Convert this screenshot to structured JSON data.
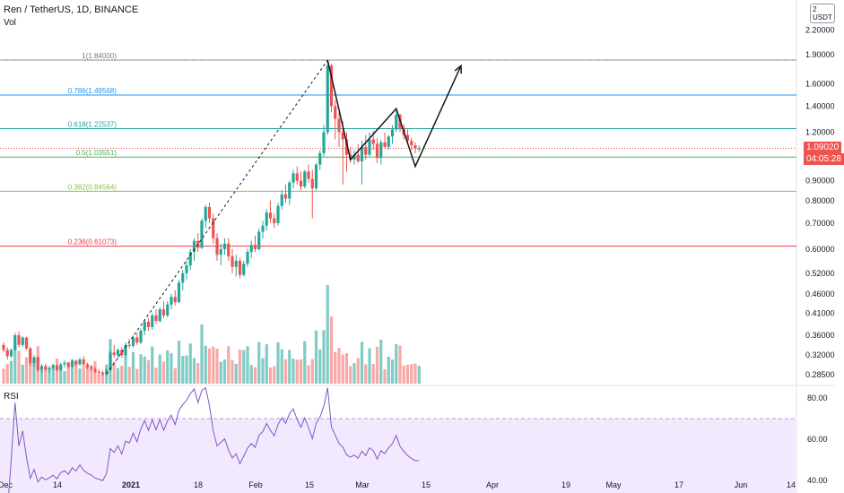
{
  "header": {
    "symbol": "Ren / TetherUS, 1D, BINANCE",
    "indicator": "Vol"
  },
  "rsi_label": "RSI",
  "usdt_button": [
    "2",
    "USDT"
  ],
  "current_price": {
    "value": "1.09020",
    "countdown": "04:05:28",
    "color": "#ef5350"
  },
  "colors": {
    "up": "#26a69a",
    "down": "#ef5350",
    "vol_up": "#80cbc4",
    "vol_down": "#f7a9a7",
    "rsi_line": "#7e57c2",
    "rsi_band": "#f3e9ff"
  },
  "chart_data": {
    "type": "candlestick",
    "price_axis": {
      "ticks": [
        "2.20000",
        "1.90000",
        "1.60000",
        "1.40000",
        "1.20000",
        "0.90000",
        "0.80000",
        "0.70000",
        "0.60000",
        "0.52000",
        "0.46000",
        "0.41000",
        "0.36000",
        "0.32000",
        "0.28500"
      ],
      "scale": "log"
    },
    "rsi_axis": {
      "ticks": [
        "80.00",
        "60.00",
        "40.00"
      ]
    },
    "time_axis": {
      "ticks": [
        "Dec",
        "14",
        "2021",
        "18",
        "Feb",
        "15",
        "Mar",
        "15",
        "Apr",
        "19",
        "May",
        "17",
        "Jun",
        "14"
      ]
    },
    "fib_levels": [
      {
        "label": "1(1.84000)",
        "value": 1.84,
        "color": "#787b86"
      },
      {
        "label": "0.786(1.49568)",
        "value": 1.49568,
        "color": "#2196f3"
      },
      {
        "label": "0.618(1.22537)",
        "value": 1.22537,
        "color": "#26a69a"
      },
      {
        "label": "0.5(1.03551)",
        "value": 1.03551,
        "color": "#4caf50"
      },
      {
        "label": "0.382(0.84564)",
        "value": 0.84564,
        "color": "#8bc34a"
      },
      {
        "label": "0.236(0.61073)",
        "value": 0.61073,
        "color": "#f23645"
      }
    ],
    "candles": [
      [
        0.34,
        0.345,
        0.325,
        0.33
      ],
      [
        0.33,
        0.335,
        0.312,
        0.318
      ],
      [
        0.318,
        0.333,
        0.315,
        0.33
      ],
      [
        0.33,
        0.365,
        0.328,
        0.36
      ],
      [
        0.36,
        0.368,
        0.335,
        0.34
      ],
      [
        0.34,
        0.358,
        0.336,
        0.355
      ],
      [
        0.355,
        0.357,
        0.33,
        0.333
      ],
      [
        0.333,
        0.336,
        0.3,
        0.305
      ],
      [
        0.305,
        0.32,
        0.298,
        0.316
      ],
      [
        0.316,
        0.318,
        0.29,
        0.293
      ],
      [
        0.293,
        0.304,
        0.288,
        0.3
      ],
      [
        0.3,
        0.304,
        0.291,
        0.294
      ],
      [
        0.294,
        0.3,
        0.288,
        0.297
      ],
      [
        0.297,
        0.304,
        0.292,
        0.301
      ],
      [
        0.301,
        0.303,
        0.29,
        0.293
      ],
      [
        0.293,
        0.306,
        0.291,
        0.303
      ],
      [
        0.303,
        0.31,
        0.297,
        0.306
      ],
      [
        0.306,
        0.308,
        0.296,
        0.299
      ],
      [
        0.299,
        0.312,
        0.297,
        0.309
      ],
      [
        0.309,
        0.312,
        0.3,
        0.303
      ],
      [
        0.303,
        0.315,
        0.3,
        0.312
      ],
      [
        0.312,
        0.318,
        0.3,
        0.303
      ],
      [
        0.303,
        0.306,
        0.294,
        0.298
      ],
      [
        0.298,
        0.302,
        0.291,
        0.295
      ],
      [
        0.295,
        0.298,
        0.287,
        0.29
      ],
      [
        0.29,
        0.294,
        0.284,
        0.288
      ],
      [
        0.288,
        0.292,
        0.283,
        0.286
      ],
      [
        0.286,
        0.295,
        0.284,
        0.293
      ],
      [
        0.293,
        0.33,
        0.291,
        0.325
      ],
      [
        0.325,
        0.34,
        0.315,
        0.32
      ],
      [
        0.32,
        0.333,
        0.313,
        0.33
      ],
      [
        0.33,
        0.335,
        0.315,
        0.32
      ],
      [
        0.32,
        0.345,
        0.318,
        0.34
      ],
      [
        0.34,
        0.352,
        0.333,
        0.338
      ],
      [
        0.338,
        0.36,
        0.335,
        0.355
      ],
      [
        0.355,
        0.365,
        0.34,
        0.345
      ],
      [
        0.345,
        0.375,
        0.342,
        0.37
      ],
      [
        0.37,
        0.395,
        0.36,
        0.39
      ],
      [
        0.39,
        0.398,
        0.37,
        0.378
      ],
      [
        0.378,
        0.41,
        0.372,
        0.405
      ],
      [
        0.405,
        0.42,
        0.385,
        0.392
      ],
      [
        0.392,
        0.425,
        0.388,
        0.42
      ],
      [
        0.42,
        0.44,
        0.398,
        0.405
      ],
      [
        0.405,
        0.44,
        0.4,
        0.432
      ],
      [
        0.432,
        0.46,
        0.42,
        0.452
      ],
      [
        0.452,
        0.47,
        0.43,
        0.438
      ],
      [
        0.438,
        0.5,
        0.436,
        0.492
      ],
      [
        0.492,
        0.53,
        0.47,
        0.52
      ],
      [
        0.52,
        0.56,
        0.5,
        0.545
      ],
      [
        0.545,
        0.6,
        0.53,
        0.59
      ],
      [
        0.59,
        0.64,
        0.56,
        0.63
      ],
      [
        0.63,
        0.66,
        0.59,
        0.605
      ],
      [
        0.605,
        0.72,
        0.6,
        0.71
      ],
      [
        0.71,
        0.78,
        0.68,
        0.77
      ],
      [
        0.77,
        0.79,
        0.7,
        0.72
      ],
      [
        0.72,
        0.74,
        0.62,
        0.64
      ],
      [
        0.64,
        0.66,
        0.56,
        0.58
      ],
      [
        0.58,
        0.62,
        0.545,
        0.6
      ],
      [
        0.6,
        0.64,
        0.58,
        0.62
      ],
      [
        0.62,
        0.64,
        0.56,
        0.575
      ],
      [
        0.575,
        0.6,
        0.52,
        0.54
      ],
      [
        0.54,
        0.58,
        0.51,
        0.56
      ],
      [
        0.56,
        0.57,
        0.505,
        0.515
      ],
      [
        0.515,
        0.56,
        0.51,
        0.55
      ],
      [
        0.55,
        0.6,
        0.54,
        0.59
      ],
      [
        0.59,
        0.63,
        0.57,
        0.615
      ],
      [
        0.615,
        0.65,
        0.59,
        0.6
      ],
      [
        0.6,
        0.68,
        0.595,
        0.665
      ],
      [
        0.665,
        0.71,
        0.64,
        0.69
      ],
      [
        0.69,
        0.76,
        0.67,
        0.745
      ],
      [
        0.745,
        0.8,
        0.7,
        0.72
      ],
      [
        0.72,
        0.74,
        0.68,
        0.7
      ],
      [
        0.7,
        0.79,
        0.69,
        0.775
      ],
      [
        0.775,
        0.85,
        0.76,
        0.83
      ],
      [
        0.83,
        0.88,
        0.79,
        0.81
      ],
      [
        0.81,
        0.9,
        0.78,
        0.89
      ],
      [
        0.89,
        0.96,
        0.86,
        0.94
      ],
      [
        0.94,
        0.98,
        0.88,
        0.9
      ],
      [
        0.9,
        0.95,
        0.85,
        0.87
      ],
      [
        0.87,
        0.96,
        0.86,
        0.95
      ],
      [
        0.95,
        0.99,
        0.89,
        0.91
      ],
      [
        0.91,
        0.96,
        0.72,
        0.86
      ],
      [
        0.86,
        1.0,
        0.85,
        0.99
      ],
      [
        0.99,
        1.08,
        0.96,
        1.06
      ],
      [
        1.06,
        1.25,
        1.04,
        1.2
      ],
      [
        1.2,
        1.84,
        1.18,
        1.78
      ],
      [
        1.78,
        1.8,
        1.35,
        1.4
      ],
      [
        1.4,
        1.45,
        1.15,
        1.3
      ],
      [
        1.3,
        1.35,
        1.1,
        1.2
      ],
      [
        1.2,
        1.28,
        0.88,
        1.15
      ],
      [
        1.15,
        1.2,
        0.95,
        1.05
      ],
      [
        1.05,
        1.1,
        1.0,
        1.02
      ],
      [
        1.02,
        1.08,
        0.99,
        1.05
      ],
      [
        1.05,
        1.12,
        1.0,
        1.01
      ],
      [
        1.01,
        1.14,
        0.88,
        1.1
      ],
      [
        1.1,
        1.18,
        1.02,
        1.05
      ],
      [
        1.05,
        1.2,
        1.04,
        1.15
      ],
      [
        1.15,
        1.21,
        1.08,
        1.12
      ],
      [
        1.12,
        1.16,
        1.0,
        1.03
      ],
      [
        1.03,
        1.15,
        0.99,
        1.13
      ],
      [
        1.13,
        1.2,
        1.09,
        1.1
      ],
      [
        1.1,
        1.18,
        1.08,
        1.17
      ],
      [
        1.17,
        1.25,
        1.12,
        1.22
      ],
      [
        1.22,
        1.38,
        1.2,
        1.33
      ],
      [
        1.33,
        1.34,
        1.2,
        1.23
      ],
      [
        1.23,
        1.26,
        1.15,
        1.18
      ],
      [
        1.18,
        1.22,
        1.12,
        1.14
      ],
      [
        1.14,
        1.16,
        1.08,
        1.11
      ],
      [
        1.11,
        1.13,
        1.06,
        1.09
      ],
      [
        1.09,
        1.11,
        1.07,
        1.09
      ]
    ],
    "drawings": {
      "pattern_points": [
        [
          85,
          1.84
        ],
        [
          91,
          1.02
        ],
        [
          103,
          1.38
        ],
        [
          108,
          0.98
        ],
        [
          120,
          1.78
        ]
      ]
    }
  }
}
